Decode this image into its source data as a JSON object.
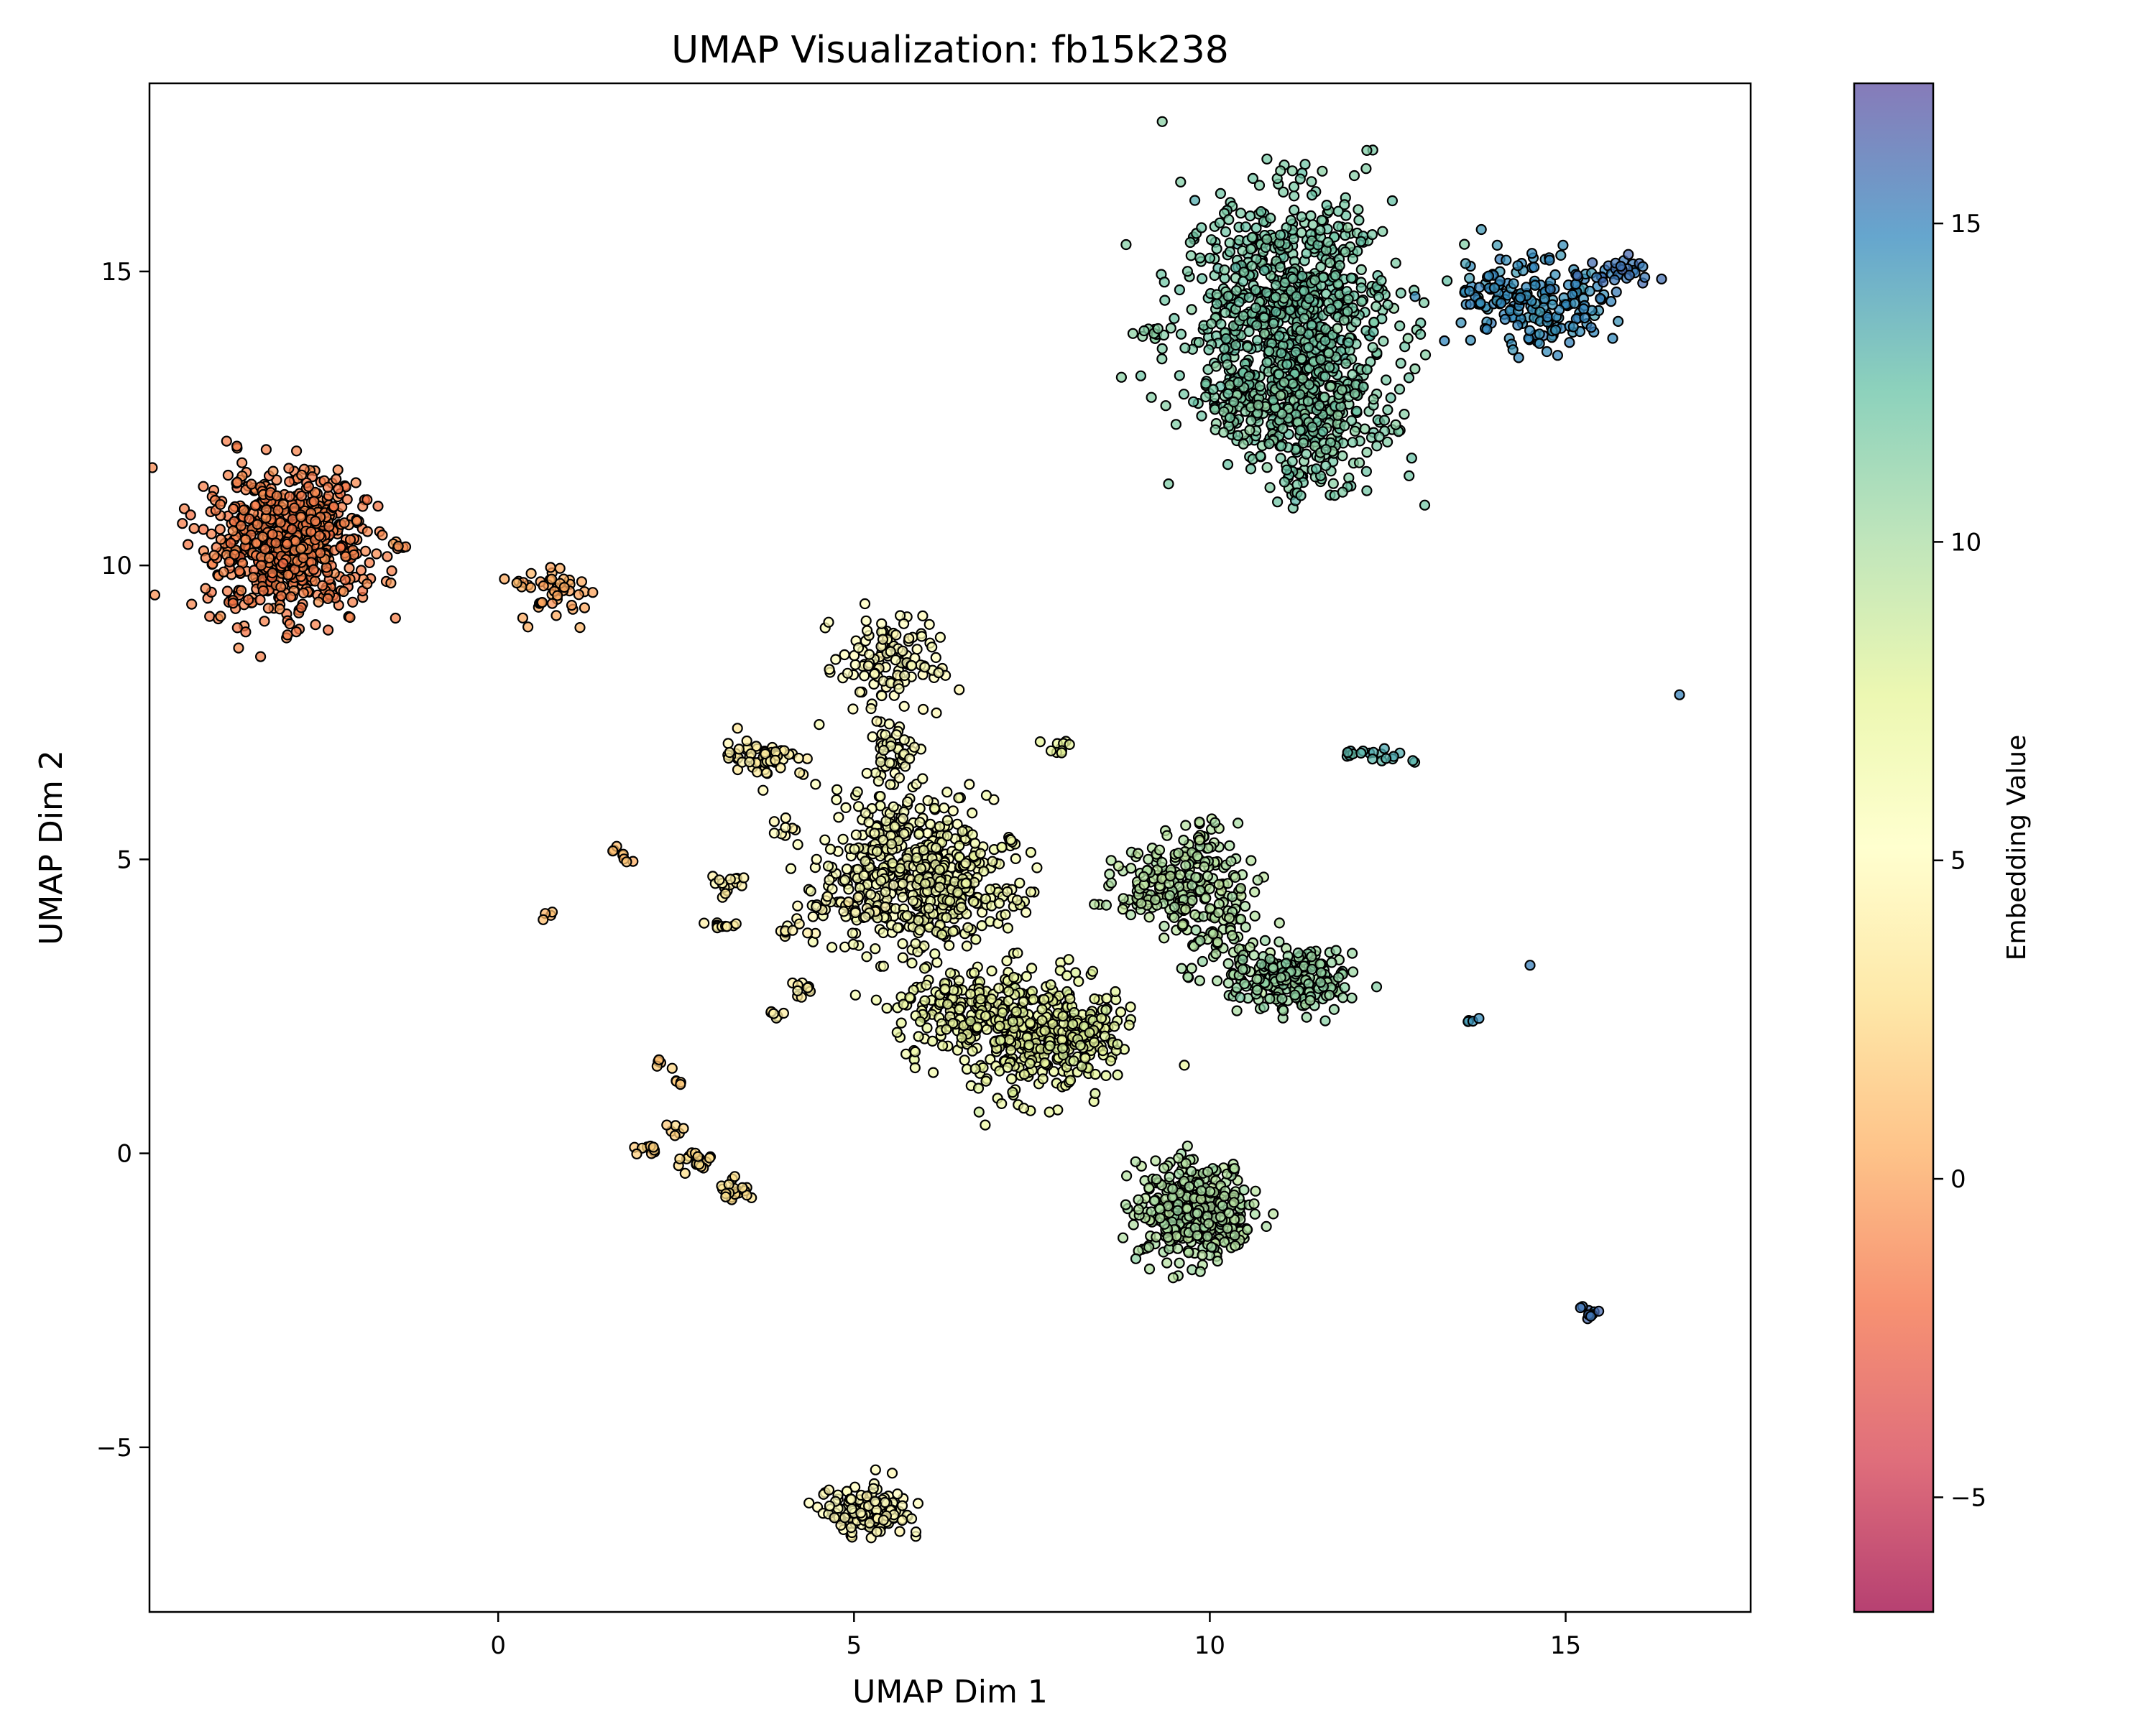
{
  "chart_data": {
    "type": "scatter",
    "title": "UMAP Visualization: fb15k238",
    "xlabel": "UMAP Dim 1",
    "ylabel": "UMAP Dim 2",
    "xlim": [
      -4.9,
      17.6
    ],
    "ylim": [
      -7.8,
      18.2
    ],
    "x_ticks": [
      0,
      5,
      10,
      15
    ],
    "y_ticks": [
      -5,
      0,
      5,
      10,
      15
    ],
    "x_tick_labels": [
      "0",
      "5",
      "10",
      "15"
    ],
    "y_tick_labels": [
      "−5",
      "0",
      "5",
      "10",
      "15"
    ],
    "grid": false,
    "legend": "none",
    "colorbar": {
      "label": "Embedding Value",
      "range": [
        -6.8,
        17.2
      ],
      "ticks": [
        -5,
        0,
        5,
        10,
        15
      ],
      "tick_labels": [
        "−5",
        "0",
        "5",
        "10",
        "15"
      ],
      "colormap": "Spectral",
      "colors": [
        "#9e0142",
        "#d53e4f",
        "#f46d43",
        "#fdae61",
        "#fee08b",
        "#ffffbf",
        "#e6f598",
        "#abdda4",
        "#66c2a5",
        "#3288bd",
        "#5e4fa2"
      ],
      "marker_alpha": 0.75,
      "marker_edge_color": "#000000"
    },
    "clusters": [
      {
        "cx": -3.0,
        "cy": 10.4,
        "sx": 0.55,
        "sy": 0.6,
        "n": 700,
        "value": -1.2
      },
      {
        "cx": 0.75,
        "cy": 9.55,
        "sx": 0.22,
        "sy": 0.25,
        "n": 45,
        "value": 0.3
      },
      {
        "cx": -1.4,
        "cy": 10.35,
        "sx": 0.08,
        "sy": 0.06,
        "n": 6,
        "value": -0.5
      },
      {
        "cx": 11.1,
        "cy": 14.2,
        "sx": 0.75,
        "sy": 1.05,
        "n": 900,
        "value": 11.8
      },
      {
        "cx": 11.5,
        "cy": 12.4,
        "sx": 0.45,
        "sy": 0.5,
        "n": 200,
        "value": 11.5
      },
      {
        "cx": 10.5,
        "cy": 12.7,
        "sx": 0.35,
        "sy": 0.3,
        "n": 60,
        "value": 11.4
      },
      {
        "cx": 14.5,
        "cy": 14.5,
        "sx": 0.55,
        "sy": 0.4,
        "n": 200,
        "value": 14.6
      },
      {
        "cx": 15.7,
        "cy": 15.0,
        "sx": 0.3,
        "sy": 0.12,
        "n": 30,
        "value": 15.6
      },
      {
        "cx": 9.2,
        "cy": 13.95,
        "sx": 0.12,
        "sy": 0.08,
        "n": 12,
        "value": 11.0
      },
      {
        "cx": 11.2,
        "cy": 11.4,
        "sx": 0.15,
        "sy": 0.2,
        "n": 15,
        "value": 11.8
      },
      {
        "cx": 5.5,
        "cy": 8.3,
        "sx": 0.35,
        "sy": 0.4,
        "n": 120,
        "value": 5.2
      },
      {
        "cx": 5.6,
        "cy": 6.8,
        "sx": 0.2,
        "sy": 0.3,
        "n": 40,
        "value": 5.5
      },
      {
        "cx": 3.7,
        "cy": 6.75,
        "sx": 0.3,
        "sy": 0.17,
        "n": 60,
        "value": 4.0
      },
      {
        "cx": 5.6,
        "cy": 4.8,
        "sx": 0.55,
        "sy": 0.7,
        "n": 400,
        "value": 5.8
      },
      {
        "cx": 6.5,
        "cy": 4.6,
        "sx": 0.4,
        "sy": 0.6,
        "n": 150,
        "value": 6.5
      },
      {
        "cx": 6.4,
        "cy": 2.4,
        "sx": 0.4,
        "sy": 0.4,
        "n": 150,
        "value": 6.8
      },
      {
        "cx": 7.5,
        "cy": 2.0,
        "sx": 0.5,
        "sy": 0.55,
        "n": 300,
        "value": 7.3
      },
      {
        "cx": 8.3,
        "cy": 2.0,
        "sx": 0.3,
        "sy": 0.4,
        "n": 80,
        "value": 7.8
      },
      {
        "cx": 9.6,
        "cy": 4.5,
        "sx": 0.45,
        "sy": 0.4,
        "n": 200,
        "value": 9.6
      },
      {
        "cx": 9.9,
        "cy": 5.2,
        "sx": 0.2,
        "sy": 0.3,
        "n": 30,
        "value": 9.7
      },
      {
        "cx": 10.3,
        "cy": 3.6,
        "sx": 0.4,
        "sy": 0.4,
        "n": 60,
        "value": 9.9
      },
      {
        "cx": 11.2,
        "cy": 2.9,
        "sx": 0.4,
        "sy": 0.25,
        "n": 200,
        "value": 10.6
      },
      {
        "cx": 9.8,
        "cy": -1.0,
        "sx": 0.4,
        "sy": 0.4,
        "n": 400,
        "value": 9.8
      },
      {
        "cx": 5.2,
        "cy": -6.1,
        "sx": 0.28,
        "sy": 0.2,
        "n": 160,
        "value": 5.0
      },
      {
        "cx": 3.2,
        "cy": 4.6,
        "sx": 0.15,
        "sy": 0.12,
        "n": 15,
        "value": 4.2
      },
      {
        "cx": 3.2,
        "cy": 3.9,
        "sx": 0.1,
        "sy": 0.06,
        "n": 10,
        "value": 4.0
      },
      {
        "cx": 4.0,
        "cy": 5.5,
        "sx": 0.1,
        "sy": 0.08,
        "n": 8,
        "value": 4.6
      },
      {
        "cx": 4.2,
        "cy": 3.8,
        "sx": 0.12,
        "sy": 0.1,
        "n": 10,
        "value": 4.4
      },
      {
        "cx": 4.3,
        "cy": 2.8,
        "sx": 0.1,
        "sy": 0.08,
        "n": 10,
        "value": 4.1
      },
      {
        "cx": 3.9,
        "cy": 2.4,
        "sx": 0.06,
        "sy": 0.05,
        "n": 6,
        "value": 3.9
      },
      {
        "cx": 4.8,
        "cy": 4.2,
        "sx": 0.3,
        "sy": 0.12,
        "n": 25,
        "value": 4.8
      },
      {
        "cx": 1.7,
        "cy": 5.05,
        "sx": 0.08,
        "sy": 0.07,
        "n": 8,
        "value": 1.2
      },
      {
        "cx": 0.7,
        "cy": 4.08,
        "sx": 0.05,
        "sy": 0.05,
        "n": 4,
        "value": 1.0
      },
      {
        "cx": 2.25,
        "cy": 1.6,
        "sx": 0.05,
        "sy": 0.04,
        "n": 4,
        "value": 1.6
      },
      {
        "cx": 2.5,
        "cy": 1.2,
        "sx": 0.05,
        "sy": 0.1,
        "n": 5,
        "value": 2.0
      },
      {
        "cx": 2.1,
        "cy": 0.05,
        "sx": 0.1,
        "sy": 0.05,
        "n": 10,
        "value": 1.9
      },
      {
        "cx": 2.5,
        "cy": 0.4,
        "sx": 0.07,
        "sy": 0.05,
        "n": 6,
        "value": 2.2
      },
      {
        "cx": 2.75,
        "cy": -0.1,
        "sx": 0.15,
        "sy": 0.1,
        "n": 20,
        "value": 2.6
      },
      {
        "cx": 3.35,
        "cy": -0.6,
        "sx": 0.12,
        "sy": 0.1,
        "n": 20,
        "value": 2.9
      },
      {
        "cx": 7.9,
        "cy": 6.9,
        "sx": 0.12,
        "sy": 0.08,
        "n": 10,
        "value": 7.3
      },
      {
        "cx": 7.3,
        "cy": 4.3,
        "sx": 0.06,
        "sy": 0.05,
        "n": 5,
        "value": 6.6
      },
      {
        "cx": 7.2,
        "cy": 5.3,
        "sx": 0.07,
        "sy": 0.05,
        "n": 6,
        "value": 6.6
      },
      {
        "cx": 12.3,
        "cy": 6.75,
        "sx": 0.25,
        "sy": 0.07,
        "n": 20,
        "value": 12.9
      },
      {
        "cx": 13.7,
        "cy": 2.25,
        "sx": 0.06,
        "sy": 0.05,
        "n": 4,
        "value": 14.2
      },
      {
        "cx": 14.5,
        "cy": 3.2,
        "sx": 0.02,
        "sy": 0.02,
        "n": 1,
        "value": 14.8
      },
      {
        "cx": 15.3,
        "cy": -2.7,
        "sx": 0.07,
        "sy": 0.07,
        "n": 10,
        "value": 15.8
      },
      {
        "cx": 16.6,
        "cy": 7.8,
        "sx": 0.02,
        "sy": 0.02,
        "n": 1,
        "value": 15.7
      }
    ]
  }
}
